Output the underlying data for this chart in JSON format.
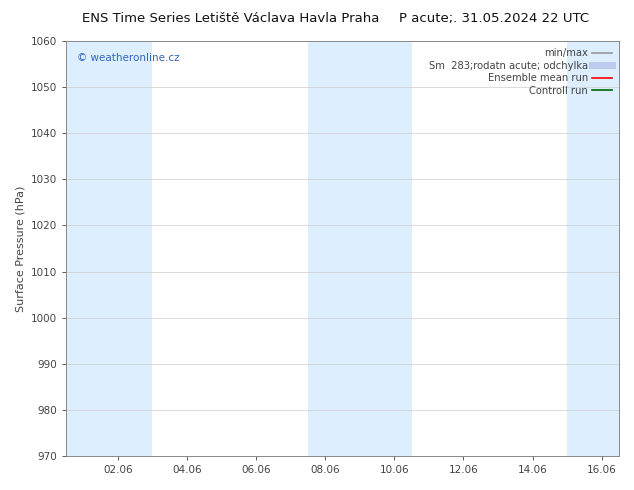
{
  "title_left": "ENS Time Series Letiště Václava Havla Praha",
  "title_right": "P acute;. 31.05.2024 22 UTC",
  "ylabel": "Surface Pressure (hPa)",
  "ylim": [
    970,
    1060
  ],
  "yticks": [
    970,
    980,
    990,
    1000,
    1010,
    1020,
    1030,
    1040,
    1050,
    1060
  ],
  "xlim_start": 0.5,
  "xlim_end": 16.5,
  "xtick_labels": [
    "02.06",
    "04.06",
    "06.06",
    "08.06",
    "10.06",
    "12.06",
    "14.06",
    "16.06"
  ],
  "xtick_positions": [
    2,
    4,
    6,
    8,
    10,
    12,
    14,
    16
  ],
  "background_color": "#ffffff",
  "plot_bg_color": "#ffffff",
  "shaded_bands": [
    {
      "x_start": 0.5,
      "x_end": 3.0,
      "color": "#ddeeff"
    },
    {
      "x_start": 7.5,
      "x_end": 10.5,
      "color": "#ddeeff"
    },
    {
      "x_start": 15.0,
      "x_end": 16.5,
      "color": "#ddeeff"
    }
  ],
  "watermark_text": "© weatheronline.cz",
  "watermark_color": "#3366bb",
  "legend_labels": [
    "min/max",
    "Sm  283;rodatn acute; odchylka",
    "Ensemble mean run",
    "Controll run"
  ],
  "legend_colors": [
    "#999999",
    "#bbccee",
    "#ff0000",
    "#006600"
  ],
  "legend_lws": [
    1.2,
    5,
    1.2,
    1.2
  ],
  "tick_color": "#444444",
  "axes_color": "#888888",
  "grid_color": "#cccccc",
  "title_fontsize": 9.5,
  "label_fontsize": 8,
  "tick_fontsize": 7.5,
  "legend_fontsize": 7.2,
  "watermark_fontsize": 7.5
}
